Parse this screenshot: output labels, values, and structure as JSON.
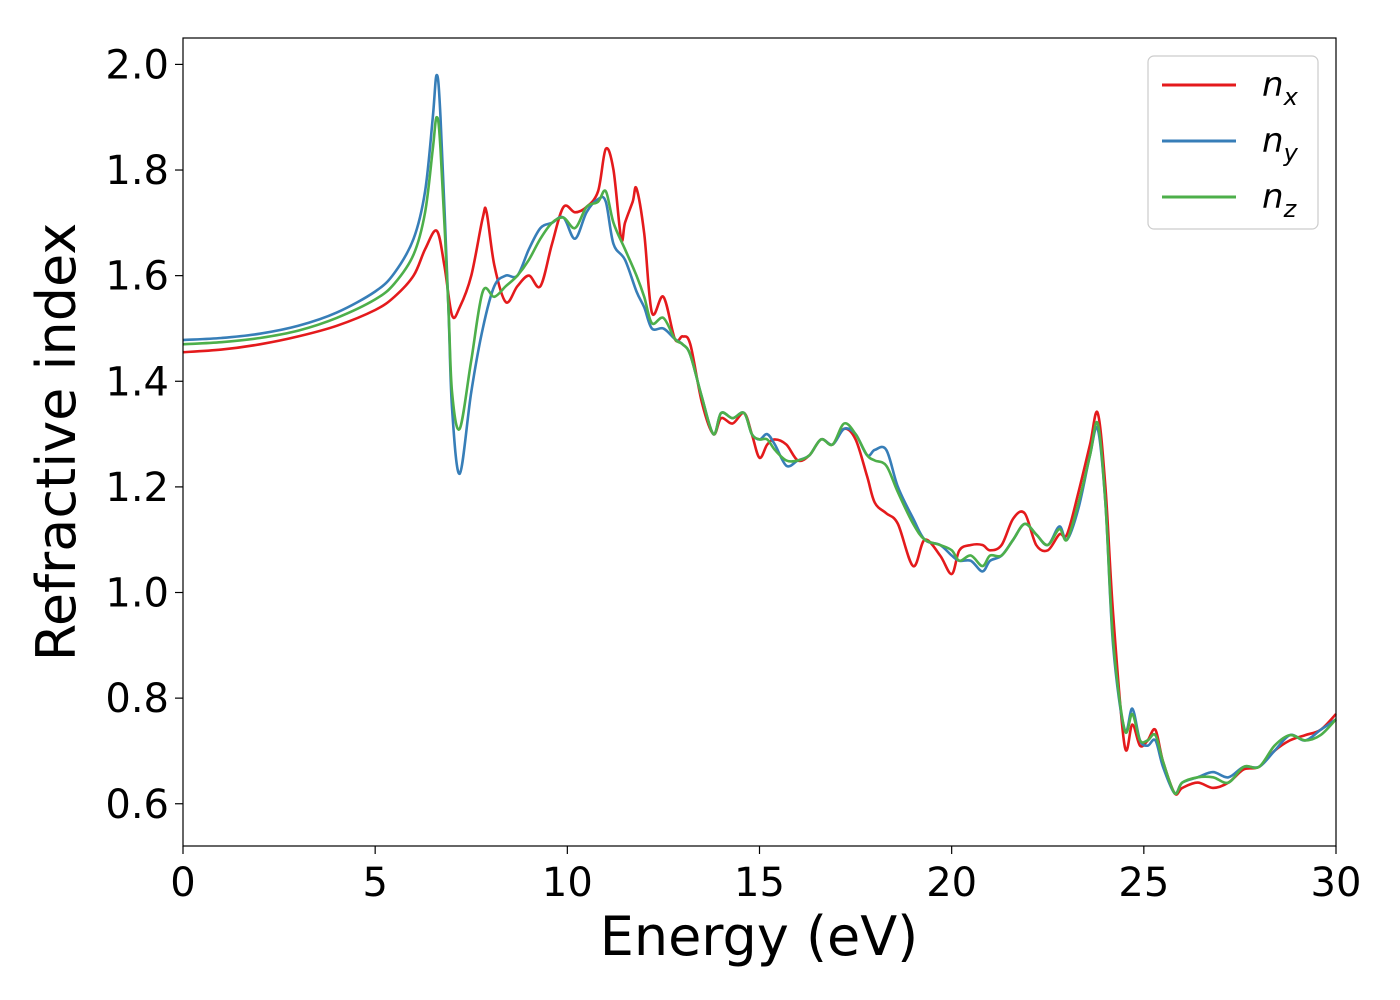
{
  "chart_data": {
    "type": "line",
    "xlabel": "Energy (eV)",
    "ylabel": "Refractive index",
    "xlim": [
      0,
      30
    ],
    "ylim": [
      0.52,
      2.05
    ],
    "xticks": [
      0,
      5,
      10,
      15,
      20,
      25,
      30
    ],
    "xtick_labels": [
      "0",
      "5",
      "10",
      "15",
      "20",
      "25",
      "30"
    ],
    "yticks": [
      0.6,
      0.8,
      1.0,
      1.2,
      1.4,
      1.6,
      1.8,
      2.0
    ],
    "ytick_labels": [
      "0.6",
      "0.8",
      "1.0",
      "1.2",
      "1.4",
      "1.6",
      "1.8",
      "2.0"
    ],
    "legend_position": "top-right",
    "grid": false,
    "series": [
      {
        "name": "n_x",
        "legend_main": "n",
        "legend_sub": "x",
        "color": "#e41a1c",
        "x": [
          0,
          1,
          2,
          3,
          4,
          5,
          5.5,
          6,
          6.3,
          6.6,
          6.8,
          7.0,
          7.2,
          7.5,
          7.8,
          7.9,
          8.1,
          8.4,
          8.7,
          9.0,
          9.3,
          9.6,
          9.9,
          10.2,
          10.5,
          10.8,
          11.0,
          11.2,
          11.4,
          11.5,
          11.7,
          11.8,
          12.0,
          12.2,
          12.5,
          12.8,
          13.0,
          13.2,
          13.5,
          13.8,
          14.0,
          14.3,
          14.6,
          14.8,
          15.0,
          15.2,
          15.4,
          15.7,
          16.0,
          16.3,
          16.6,
          16.9,
          17.2,
          17.5,
          17.8,
          18.0,
          18.3,
          18.6,
          19.0,
          19.3,
          19.7,
          20.0,
          20.2,
          20.5,
          20.8,
          21.0,
          21.3,
          21.6,
          21.9,
          22.2,
          22.5,
          22.8,
          23.0,
          23.3,
          23.6,
          23.8,
          24.0,
          24.2,
          24.5,
          24.7,
          24.9,
          25.1,
          25.3,
          25.5,
          25.8,
          26.0,
          26.4,
          26.8,
          27.2,
          27.6,
          28.0,
          28.4,
          28.8,
          29.2,
          29.6,
          30.0
        ],
        "y": [
          1.455,
          1.46,
          1.47,
          1.485,
          1.505,
          1.535,
          1.56,
          1.6,
          1.65,
          1.685,
          1.62,
          1.525,
          1.54,
          1.6,
          1.71,
          1.72,
          1.62,
          1.55,
          1.58,
          1.6,
          1.58,
          1.66,
          1.73,
          1.72,
          1.73,
          1.76,
          1.84,
          1.8,
          1.67,
          1.7,
          1.74,
          1.765,
          1.68,
          1.53,
          1.56,
          1.48,
          1.485,
          1.47,
          1.36,
          1.3,
          1.33,
          1.32,
          1.34,
          1.3,
          1.255,
          1.28,
          1.29,
          1.28,
          1.25,
          1.26,
          1.29,
          1.28,
          1.31,
          1.29,
          1.22,
          1.17,
          1.15,
          1.13,
          1.05,
          1.1,
          1.07,
          1.035,
          1.08,
          1.09,
          1.09,
          1.08,
          1.09,
          1.14,
          1.15,
          1.09,
          1.08,
          1.11,
          1.11,
          1.19,
          1.28,
          1.34,
          1.2,
          0.96,
          0.71,
          0.75,
          0.71,
          0.72,
          0.74,
          0.68,
          0.62,
          0.63,
          0.64,
          0.63,
          0.64,
          0.665,
          0.67,
          0.7,
          0.72,
          0.73,
          0.74,
          0.77
        ]
      },
      {
        "name": "n_y",
        "legend_main": "n",
        "legend_sub": "y",
        "color": "#377eb8",
        "x": [
          0,
          1,
          2,
          3,
          4,
          5,
          5.5,
          6,
          6.3,
          6.5,
          6.6,
          6.7,
          6.9,
          7.0,
          7.2,
          7.5,
          7.8,
          8.1,
          8.4,
          8.7,
          9.0,
          9.3,
          9.6,
          9.9,
          10.2,
          10.5,
          10.8,
          11.0,
          11.2,
          11.5,
          11.8,
          12.0,
          12.2,
          12.5,
          12.8,
          13.0,
          13.2,
          13.5,
          13.8,
          14.0,
          14.3,
          14.6,
          14.8,
          15.0,
          15.2,
          15.4,
          15.7,
          16.0,
          16.3,
          16.6,
          16.9,
          17.2,
          17.5,
          17.8,
          18.0,
          18.3,
          18.6,
          19.0,
          19.3,
          19.7,
          20.0,
          20.2,
          20.5,
          20.8,
          21.0,
          21.3,
          21.6,
          21.9,
          22.2,
          22.5,
          22.8,
          23.0,
          23.3,
          23.6,
          23.8,
          24.0,
          24.2,
          24.5,
          24.7,
          24.9,
          25.1,
          25.3,
          25.5,
          25.8,
          26.0,
          26.4,
          26.8,
          27.2,
          27.6,
          28.0,
          28.4,
          28.8,
          29.2,
          29.6,
          30.0
        ],
        "y": [
          1.478,
          1.482,
          1.49,
          1.505,
          1.53,
          1.57,
          1.605,
          1.67,
          1.76,
          1.9,
          1.98,
          1.9,
          1.55,
          1.35,
          1.225,
          1.38,
          1.5,
          1.58,
          1.6,
          1.6,
          1.65,
          1.69,
          1.7,
          1.71,
          1.67,
          1.72,
          1.745,
          1.74,
          1.66,
          1.63,
          1.57,
          1.54,
          1.5,
          1.5,
          1.48,
          1.47,
          1.45,
          1.37,
          1.3,
          1.34,
          1.33,
          1.34,
          1.3,
          1.29,
          1.3,
          1.28,
          1.24,
          1.25,
          1.26,
          1.29,
          1.28,
          1.31,
          1.3,
          1.26,
          1.27,
          1.27,
          1.2,
          1.14,
          1.1,
          1.09,
          1.07,
          1.06,
          1.06,
          1.04,
          1.06,
          1.07,
          1.1,
          1.13,
          1.11,
          1.09,
          1.125,
          1.1,
          1.16,
          1.26,
          1.31,
          1.17,
          0.9,
          0.74,
          0.78,
          0.72,
          0.71,
          0.72,
          0.67,
          0.62,
          0.64,
          0.65,
          0.66,
          0.65,
          0.67,
          0.67,
          0.7,
          0.73,
          0.72,
          0.74,
          0.76
        ]
      },
      {
        "name": "n_z",
        "legend_main": "n",
        "legend_sub": "z",
        "color": "#4daf4a",
        "x": [
          0,
          1,
          2,
          3,
          4,
          5,
          5.5,
          6,
          6.3,
          6.5,
          6.6,
          6.7,
          6.9,
          7.0,
          7.2,
          7.5,
          7.8,
          8.1,
          8.4,
          8.7,
          9.0,
          9.3,
          9.6,
          9.9,
          10.2,
          10.5,
          10.8,
          11.0,
          11.2,
          11.5,
          11.8,
          12.0,
          12.2,
          12.5,
          12.8,
          13.0,
          13.2,
          13.5,
          13.8,
          14.0,
          14.3,
          14.6,
          14.8,
          15.0,
          15.2,
          15.4,
          15.7,
          16.0,
          16.3,
          16.6,
          16.9,
          17.2,
          17.5,
          17.8,
          18.0,
          18.3,
          18.6,
          19.0,
          19.3,
          19.7,
          20.0,
          20.2,
          20.5,
          20.8,
          21.0,
          21.3,
          21.6,
          21.9,
          22.2,
          22.5,
          22.8,
          23.0,
          23.3,
          23.6,
          23.8,
          24.0,
          24.2,
          24.5,
          24.7,
          24.9,
          25.1,
          25.3,
          25.5,
          25.8,
          26.0,
          26.4,
          26.8,
          27.2,
          27.6,
          28.0,
          28.4,
          28.8,
          29.2,
          29.6,
          30.0
        ],
        "y": [
          1.47,
          1.474,
          1.482,
          1.496,
          1.52,
          1.555,
          1.585,
          1.64,
          1.72,
          1.84,
          1.9,
          1.84,
          1.55,
          1.38,
          1.31,
          1.44,
          1.57,
          1.56,
          1.58,
          1.6,
          1.63,
          1.67,
          1.7,
          1.71,
          1.69,
          1.73,
          1.74,
          1.76,
          1.7,
          1.65,
          1.6,
          1.56,
          1.51,
          1.52,
          1.48,
          1.47,
          1.45,
          1.37,
          1.3,
          1.34,
          1.33,
          1.34,
          1.3,
          1.29,
          1.29,
          1.27,
          1.25,
          1.25,
          1.26,
          1.29,
          1.28,
          1.32,
          1.3,
          1.26,
          1.25,
          1.24,
          1.19,
          1.13,
          1.1,
          1.09,
          1.08,
          1.06,
          1.07,
          1.05,
          1.07,
          1.07,
          1.1,
          1.13,
          1.11,
          1.09,
          1.12,
          1.1,
          1.17,
          1.26,
          1.32,
          1.17,
          0.91,
          0.74,
          0.77,
          0.72,
          0.72,
          0.73,
          0.68,
          0.62,
          0.64,
          0.65,
          0.65,
          0.64,
          0.67,
          0.67,
          0.71,
          0.73,
          0.72,
          0.73,
          0.76
        ]
      }
    ]
  }
}
